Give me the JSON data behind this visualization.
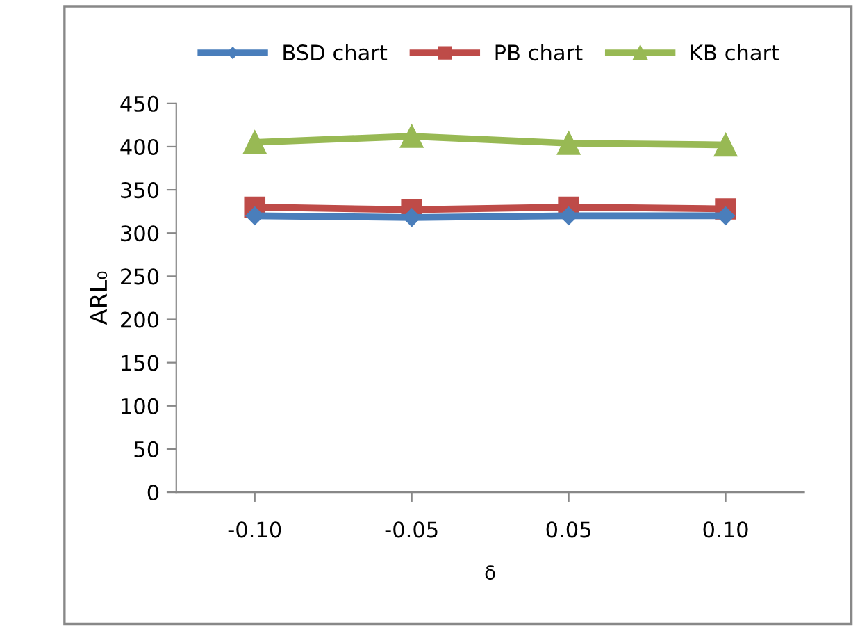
{
  "chart_data": {
    "type": "line",
    "xlabel": "δ",
    "ylabel": "ARL₀",
    "categories": [
      "-0.10",
      "-0.05",
      "0.05",
      "0.10"
    ],
    "series": [
      {
        "name": "BSD chart",
        "color": "#4a7ebb",
        "marker": "diamond",
        "values": [
          320,
          318,
          320,
          320
        ]
      },
      {
        "name": "PB chart",
        "color": "#be4b48",
        "marker": "square",
        "values": [
          330,
          327,
          330,
          328
        ]
      },
      {
        "name": "KB chart",
        "color": "#98b954",
        "marker": "triangle",
        "values": [
          405,
          412,
          404,
          402
        ]
      }
    ],
    "ylim": [
      0,
      450
    ],
    "yticks": [
      0,
      50,
      100,
      150,
      200,
      250,
      300,
      350,
      400,
      450
    ],
    "grid": false,
    "legend": "top",
    "line_style": "solid"
  }
}
